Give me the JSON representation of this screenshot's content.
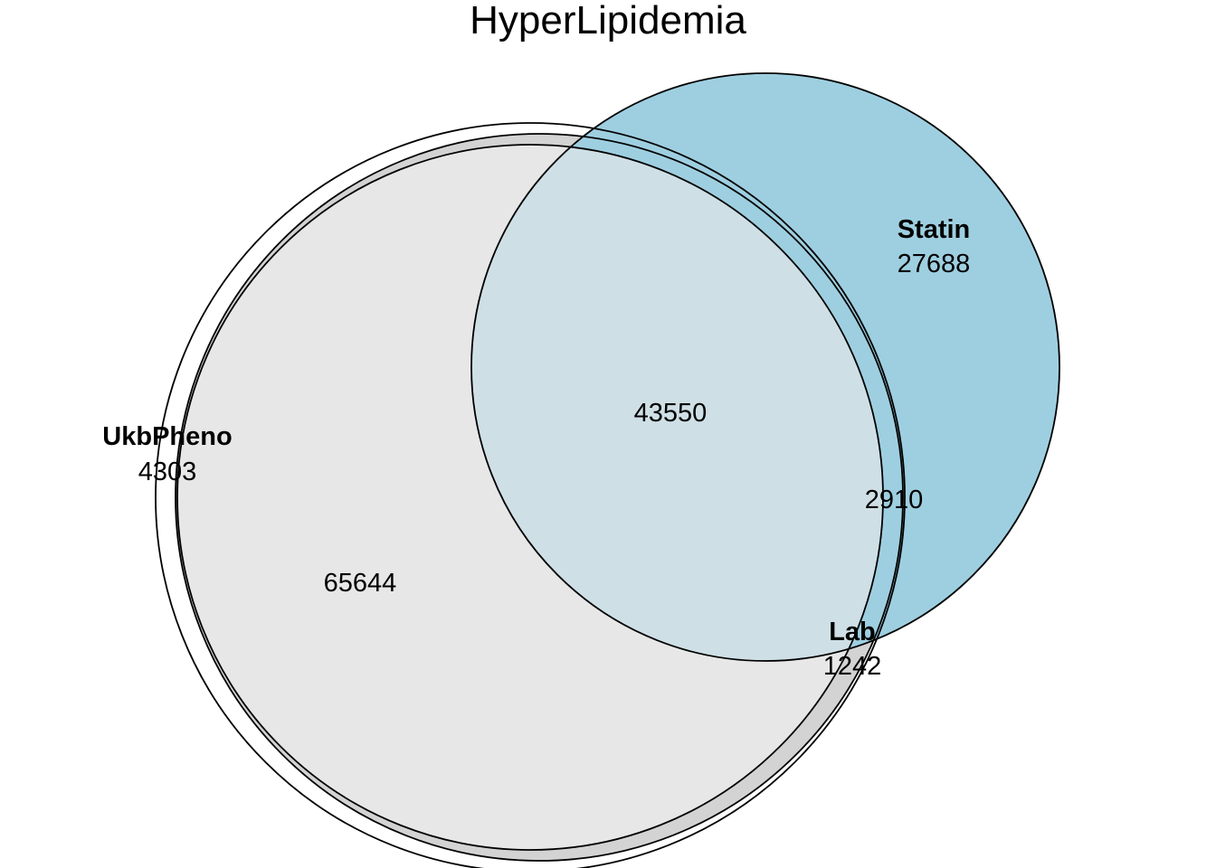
{
  "title": "HyperLipidemia",
  "colors": {
    "ukbpheno_fill": "#ffffff",
    "lab_fill": "#d3d3d3",
    "statin_fill": "#9ecfe0",
    "inner_fill": "#e7e7e7",
    "overlap_fill": "#cfdfe6",
    "outline": "#000000"
  },
  "sets": [
    {
      "name": "UkbPheno",
      "only_count": "4303"
    },
    {
      "name": "Statin",
      "only_count": "27688"
    },
    {
      "name": "Lab",
      "only_count": "1242"
    }
  ],
  "intersections": {
    "ukbpheno_lab": "65644",
    "all_three": "43550",
    "lab_statin": "2910"
  }
}
